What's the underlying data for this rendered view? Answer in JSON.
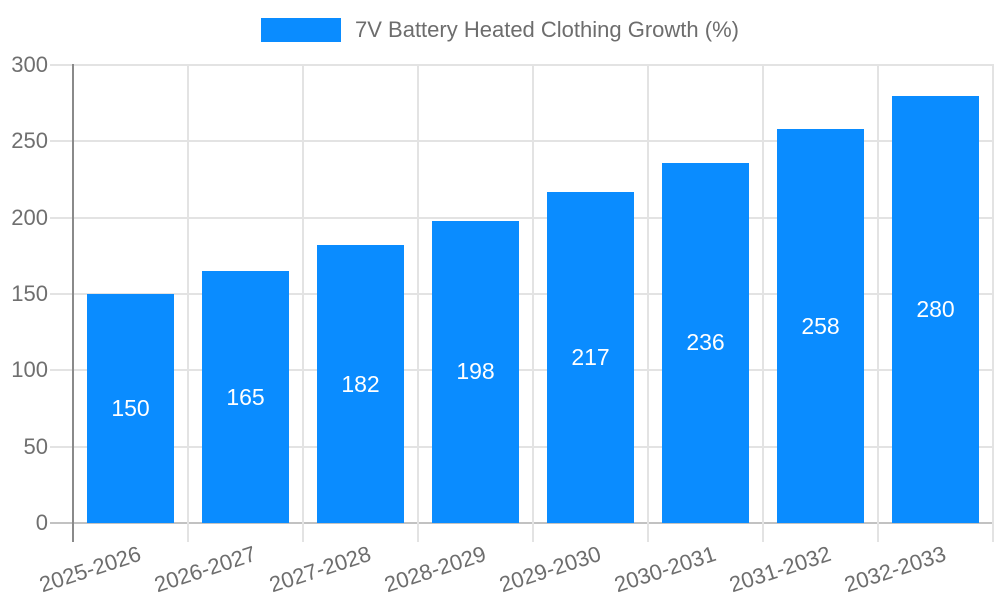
{
  "legend": {
    "series_label": "7V Battery Heated Clothing Growth (%)"
  },
  "chart_data": {
    "type": "bar",
    "title": "7V Battery Heated Clothing Growth (%)",
    "categories": [
      "2025-2026",
      "2026-2027",
      "2027-2028",
      "2028-2029",
      "2029-2030",
      "2030-2031",
      "2031-2032",
      "2032-2033"
    ],
    "values": [
      150,
      165,
      182,
      198,
      217,
      236,
      258,
      280
    ],
    "xlabel": "",
    "ylabel": "",
    "ylim": [
      0,
      300
    ],
    "yticks": [
      0,
      50,
      100,
      150,
      200,
      250,
      300
    ],
    "grid": true,
    "legend_position": "top",
    "value_labels_shown": true,
    "x_label_rotation_deg": -18,
    "colors": {
      "bar": "#0a8cff",
      "value_label": "#ffffff",
      "axis_text": "#6d6d6d",
      "gridline": "#e3e3e3",
      "baseline": "#c2c2c2",
      "axis_line": "#8a8a8a"
    }
  }
}
